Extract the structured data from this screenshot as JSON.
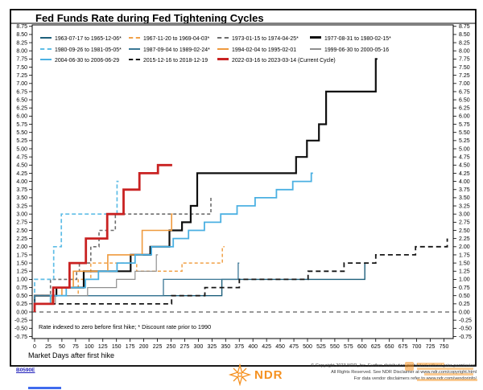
{
  "page": {
    "background": "#ffffff"
  },
  "footer": {
    "code": "B0590E",
    "code_color": "#2121bb",
    "ndr_logo_icon": "compass-rose-icon",
    "ndr_logo_label": "NDR",
    "ndr_orange": "#f59120",
    "copyright_lines": [
      "© Copyright 2023 NDR, Inc. Further distribution prohibited without prior permission.",
      "All Rights Reserved. See NDR Disclaimer at www.ndr.com/copyright.html",
      "For data vendor disclaimers refer to www.ndr.com/vendorinfo/"
    ]
  },
  "chart_data": {
    "type": "line",
    "subtype": "step",
    "title": "Fed Funds Rate during Fed Tightening Cycles",
    "xlabel": "Market Days after first hike",
    "footnote": "Rate indexed to zero before first hike; * Discount rate prior to 1990",
    "x_axis": {
      "min": 0,
      "max": 750,
      "tick_step": 25
    },
    "y_axis": {
      "min": -0.75,
      "max": 8.75,
      "tick_step": 0.25,
      "labels_both_sides": true
    },
    "zero_reference_line": 0.0,
    "grid": false,
    "legend_position": "top-inside",
    "legend_rows": [
      [
        0,
        1,
        2,
        3
      ],
      [
        4,
        5,
        6,
        7
      ],
      [
        8,
        9,
        10
      ]
    ],
    "series": [
      {
        "name": "1963-07-17 to 1965-12-06*",
        "color": "#1d5f7b",
        "style": "solid",
        "width": 1.4,
        "points": [
          [
            0,
            0.5
          ],
          [
            343,
            1.0
          ],
          [
            605,
            1.5
          ],
          [
            608,
            1.5
          ]
        ]
      },
      {
        "name": "1967-11-20 to 1969-04-03*",
        "color": "#f0a148",
        "style": "dashed",
        "dash": "4 3",
        "width": 1.5,
        "points": [
          [
            0,
            0.5
          ],
          [
            80,
            1.0
          ],
          [
            103,
            1.5
          ],
          [
            187,
            1.25
          ],
          [
            270,
            1.5
          ],
          [
            344,
            2.0
          ],
          [
            348,
            2.0
          ]
        ]
      },
      {
        "name": "1973-01-15 to 1974-04-25*",
        "color": "#6e6e6e",
        "style": "dashed",
        "dash": "4 3",
        "width": 1.6,
        "points": [
          [
            0,
            0.5
          ],
          [
            29,
            1.0
          ],
          [
            77,
            1.25
          ],
          [
            82,
            1.5
          ],
          [
            103,
            2.0
          ],
          [
            118,
            2.5
          ],
          [
            148,
            3.0
          ],
          [
            323,
            3.5
          ],
          [
            327,
            3.5
          ]
        ]
      },
      {
        "name": "1977-08-31 to 1980-02-15*",
        "color": "#0f0f0f",
        "style": "solid",
        "width": 2.2,
        "points": [
          [
            0,
            0.5
          ],
          [
            40,
            0.75
          ],
          [
            90,
            1.25
          ],
          [
            176,
            1.75
          ],
          [
            212,
            2.0
          ],
          [
            247,
            2.5
          ],
          [
            270,
            2.75
          ],
          [
            286,
            3.25
          ],
          [
            298,
            4.25
          ],
          [
            479,
            4.75
          ],
          [
            499,
            5.25
          ],
          [
            521,
            5.75
          ],
          [
            534,
            6.75
          ],
          [
            625,
            7.75
          ],
          [
            628,
            7.75
          ]
        ]
      },
      {
        "name": "1980-09-26 to 1981-05-05*",
        "color": "#5fbde6",
        "style": "dashed",
        "dash": "5 3",
        "width": 1.7,
        "points": [
          [
            0,
            1.0
          ],
          [
            35,
            2.0
          ],
          [
            49,
            3.0
          ],
          [
            151,
            4.0
          ],
          [
            154,
            4.0
          ]
        ]
      },
      {
        "name": "1987-09-04 to 1989-02-24*",
        "color": "#3a7795",
        "style": "solid",
        "width": 1.3,
        "points": [
          [
            0,
            0.5
          ],
          [
            236,
            1.0
          ],
          [
            373,
            1.5
          ],
          [
            375,
            1.5
          ]
        ]
      },
      {
        "name": "1994-02-04 to 1995-02-01",
        "color": "#ef9a3d",
        "style": "solid",
        "width": 1.6,
        "points": [
          [
            0,
            0.25
          ],
          [
            32,
            0.5
          ],
          [
            50,
            0.75
          ],
          [
            71,
            1.25
          ],
          [
            134,
            1.75
          ],
          [
            197,
            2.5
          ],
          [
            251,
            3.0
          ],
          [
            253,
            3.0
          ]
        ]
      },
      {
        "name": "1999-06-30 to 2000-05-16",
        "color": "#8f8f8f",
        "style": "solid",
        "width": 1.2,
        "points": [
          [
            0,
            0.25
          ],
          [
            38,
            0.5
          ],
          [
            97,
            0.75
          ],
          [
            150,
            1.0
          ],
          [
            184,
            1.25
          ],
          [
            223,
            1.75
          ],
          [
            226,
            1.75
          ]
        ]
      },
      {
        "name": "2004-06-30 to 2006-06-29",
        "color": "#4bb0e2",
        "style": "solid",
        "width": 1.8,
        "points": [
          [
            0,
            0.25
          ],
          [
            29,
            0.5
          ],
          [
            58,
            0.75
          ],
          [
            93,
            1.0
          ],
          [
            117,
            1.25
          ],
          [
            151,
            1.5
          ],
          [
            184,
            1.75
          ],
          [
            214,
            2.0
          ],
          [
            254,
            2.25
          ],
          [
            282,
            2.5
          ],
          [
            311,
            2.75
          ],
          [
            341,
            3.0
          ],
          [
            371,
            3.25
          ],
          [
            404,
            3.5
          ],
          [
            443,
            3.75
          ],
          [
            473,
            4.0
          ],
          [
            507,
            4.25
          ],
          [
            510,
            4.25
          ]
        ]
      },
      {
        "name": "2015-12-16 to 2018-12-19",
        "color": "#161616",
        "style": "dashed",
        "dash": "6 4",
        "width": 1.8,
        "points": [
          [
            0,
            0.25
          ],
          [
            251,
            0.5
          ],
          [
            312,
            0.75
          ],
          [
            375,
            1.0
          ],
          [
            501,
            1.25
          ],
          [
            567,
            1.5
          ],
          [
            625,
            1.75
          ],
          [
            698,
            2.0
          ],
          [
            756,
            2.25
          ]
        ]
      },
      {
        "name": "2022-03-16 to 2023-03-14 (Current Cycle)",
        "color": "#c92222",
        "style": "solid",
        "width": 2.8,
        "points": [
          [
            0,
            0.25
          ],
          [
            34,
            0.75
          ],
          [
            64,
            1.5
          ],
          [
            94,
            2.25
          ],
          [
            133,
            3.0
          ],
          [
            163,
            3.75
          ],
          [
            192,
            4.25
          ],
          [
            226,
            4.5
          ],
          [
            252,
            4.5
          ]
        ]
      }
    ]
  }
}
